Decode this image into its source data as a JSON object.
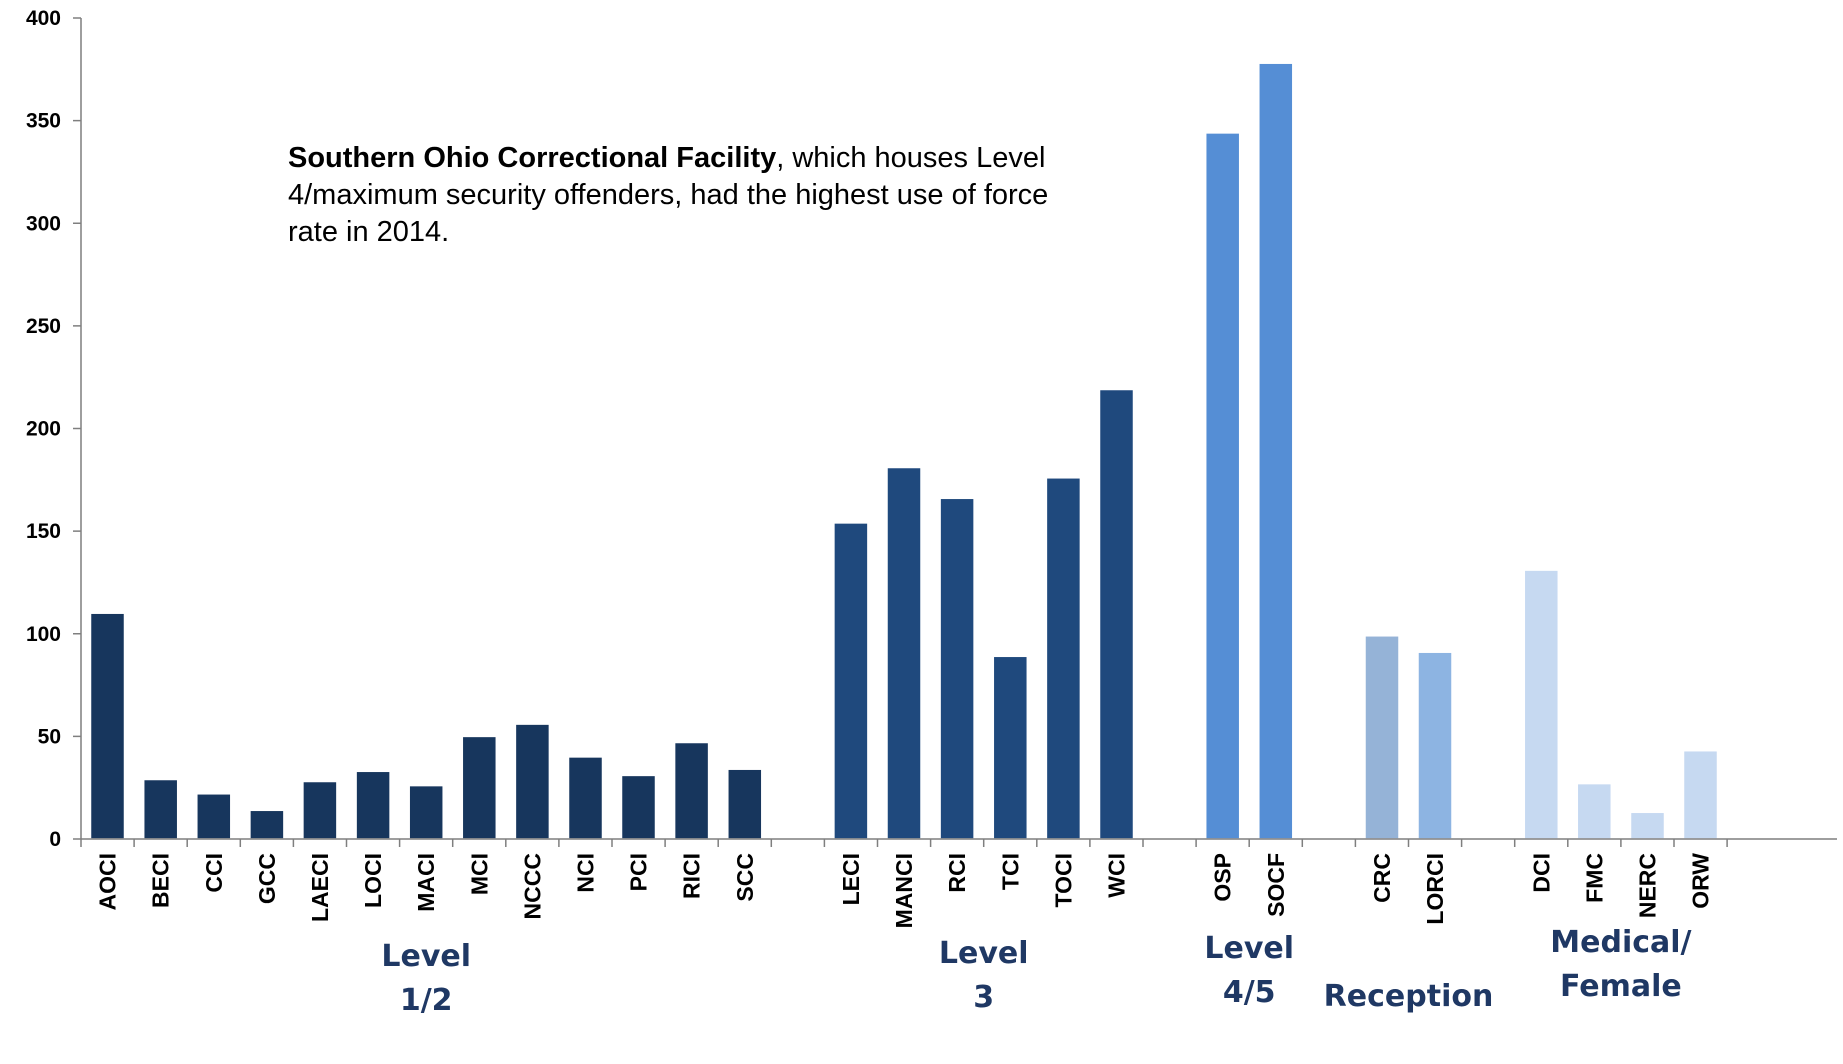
{
  "annotation": {
    "bold": "Southern Ohio Correctional Facility",
    "rest": ", which houses Level 4/maximum security offenders, had the highest use of force rate in 2014."
  },
  "chart_data": {
    "type": "bar",
    "title": "",
    "xlabel": "",
    "ylabel": "",
    "ylim": [
      0,
      400
    ],
    "yticks": [
      0,
      50,
      100,
      150,
      200,
      250,
      300,
      350,
      400
    ],
    "grid": false,
    "groups": [
      {
        "label_lines": [
          "Level",
          "1/2"
        ],
        "color": "#17365d",
        "categories": [
          "AOCI",
          "BECI",
          "CCI",
          "GCC",
          "LAECI",
          "LOCI",
          "MACI",
          "MCI",
          "NCCC",
          "NCI",
          "PCI",
          "RICI",
          "SCC"
        ],
        "values": [
          110,
          29,
          22,
          14,
          28,
          33,
          26,
          50,
          56,
          40,
          31,
          47,
          34
        ]
      },
      {
        "label_lines": [
          "Level",
          "3"
        ],
        "color": "#1f497d",
        "categories": [
          "LECI",
          "MANCI",
          "RCI",
          "TCI",
          "TOCI",
          "WCI"
        ],
        "values": [
          154,
          181,
          166,
          89,
          176,
          219
        ]
      },
      {
        "label_lines": [
          "Level",
          "4/5"
        ],
        "color": "#558ed5",
        "categories": [
          "OSP",
          "SOCF"
        ],
        "values": [
          344,
          378
        ]
      },
      {
        "label_lines": [
          "Reception"
        ],
        "color_list": [
          "#95b3d7",
          "#8db4e2"
        ],
        "categories": [
          "CRC",
          "LORCI"
        ],
        "values": [
          99,
          91
        ]
      },
      {
        "label_lines": [
          "Medical/",
          "Female"
        ],
        "color": "#c6d9f1",
        "categories": [
          "DCI",
          "FMC",
          "NERC",
          "ORW"
        ],
        "values": [
          131,
          27,
          13,
          43
        ]
      }
    ]
  }
}
